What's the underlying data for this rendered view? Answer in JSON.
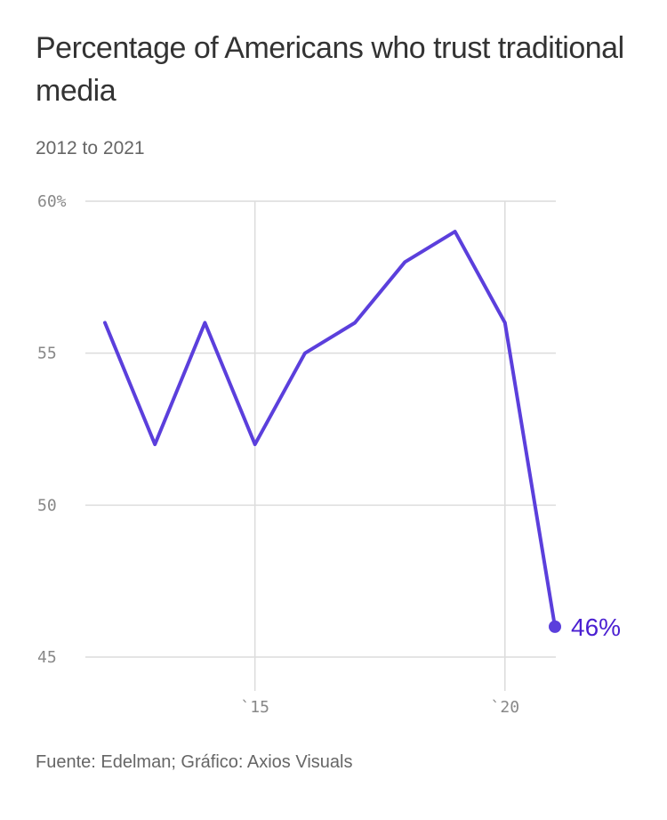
{
  "title": "Percentage of Americans who trust traditional media",
  "subtitle": "2012 to 2021",
  "source": "Fuente: Edelman; Gráfico: Axios Visuals",
  "colors": {
    "line": "#5b3fdc",
    "endLabel": "#4a1fd1",
    "grid": "#dcdcdc"
  },
  "chart_data": {
    "type": "line",
    "title": "Percentage of Americans who trust traditional media",
    "subtitle": "2012 to 2021",
    "x": [
      2012,
      2013,
      2014,
      2015,
      2016,
      2017,
      2018,
      2019,
      2020,
      2021
    ],
    "series": [
      {
        "values": [
          56,
          52,
          56,
          52,
          55,
          56,
          58,
          59,
          56,
          46
        ]
      }
    ],
    "ylim": [
      45,
      60
    ],
    "xlim": [
      2012,
      2021
    ],
    "yticks": [
      {
        "value": 60,
        "label": "60%"
      },
      {
        "value": 55,
        "label": "55"
      },
      {
        "value": 50,
        "label": "50"
      },
      {
        "value": 45,
        "label": "45"
      }
    ],
    "xticks": [
      {
        "value": 2015,
        "label": "`15"
      },
      {
        "value": 2020,
        "label": "`20"
      }
    ],
    "end_label": "46%",
    "grid": true
  }
}
